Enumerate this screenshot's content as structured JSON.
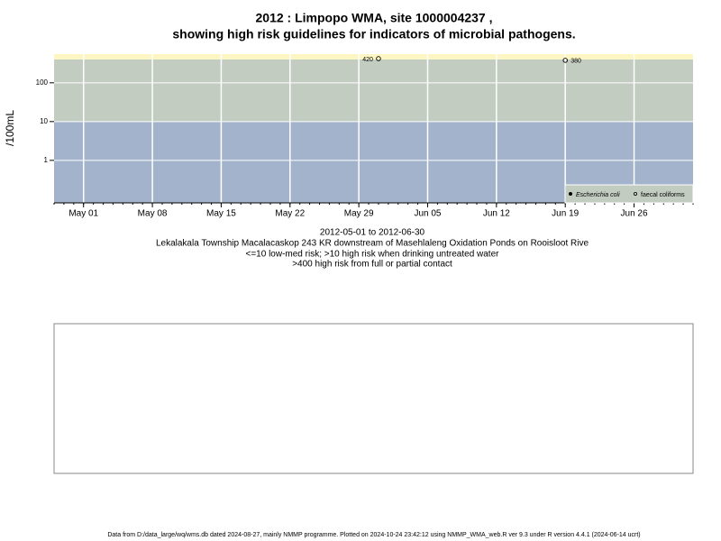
{
  "chart_data": {
    "type": "scatter",
    "title_lines": [
      "2012 : Limpopo WMA, site 1000004237 ,",
      "showing high risk guidelines for indicators of microbial pathogens."
    ],
    "ylabel": "/100mL",
    "ylog": true,
    "ylim": [
      0.08,
      550
    ],
    "yticks": [
      1,
      10,
      100
    ],
    "xlim": [
      "2012-04-28",
      "2012-07-02"
    ],
    "xticks": [
      {
        "value": "2012-05-01",
        "label": "May 01"
      },
      {
        "value": "2012-05-08",
        "label": "May 08"
      },
      {
        "value": "2012-05-15",
        "label": "May 15"
      },
      {
        "value": "2012-05-22",
        "label": "May 22"
      },
      {
        "value": "2012-05-29",
        "label": "May 29"
      },
      {
        "value": "2012-06-05",
        "label": "Jun 05"
      },
      {
        "value": "2012-06-12",
        "label": "Jun 12"
      },
      {
        "value": "2012-06-19",
        "label": "Jun 19"
      },
      {
        "value": "2012-06-26",
        "label": "Jun 26"
      }
    ],
    "grid": true,
    "bands": [
      {
        "upper": 10,
        "color": "#a3b3cb"
      },
      {
        "upper": 400,
        "color": "#c3ccc1"
      },
      {
        "upper": 550,
        "color": "#fdf6c3"
      }
    ],
    "series": [
      {
        "name": "Escherichia coli",
        "marker": "filled",
        "color": "#000000",
        "x": [],
        "values": []
      },
      {
        "name": "faecal coliforms",
        "marker": "open",
        "color": "#000000",
        "x": [
          "2012-05-31",
          "2012-06-19"
        ],
        "values": [
          420,
          380
        ]
      }
    ],
    "legend": "bottom-right",
    "notes": [
      "2012-05-01 to 2012-06-30",
      "Lekalakala Township Macalacaskop 243 KR downstream of Masehlaleng Oxidation Ponds on Rooisloot Rive",
      "<=10 low-med risk; >10 high risk when drinking untreated water",
      ">400 high risk from full or partial contact"
    ],
    "footer": "Data from D:/data_large/wq/wms.db dated 2024-08-27, mainly NMMP programme. Plotted on 2024-10-24 23:42:12 using NMMP_WMA_web.R ver 9.3 under R version 4.4.1 (2024-06-14 ucrt)"
  }
}
